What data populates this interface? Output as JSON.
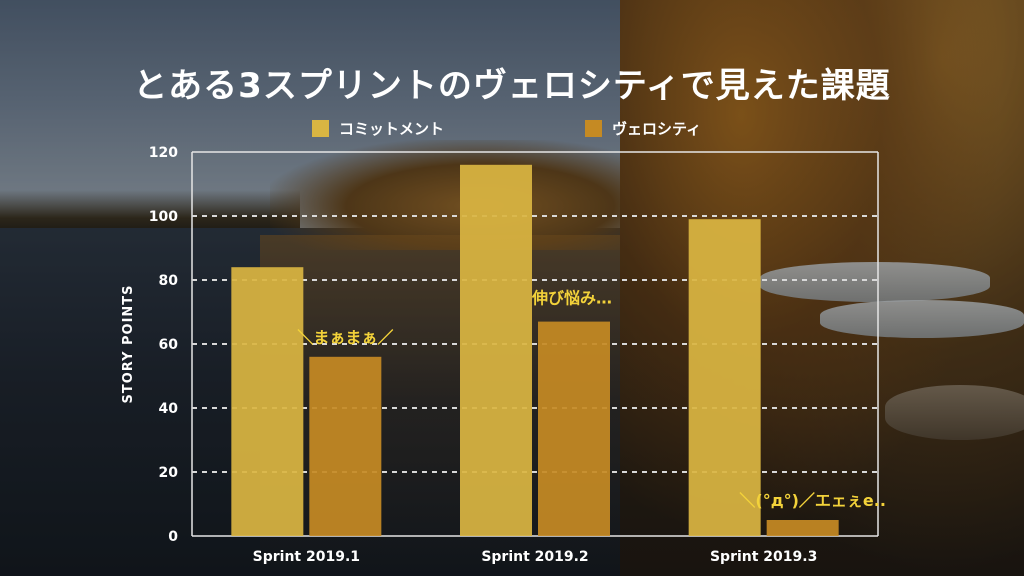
{
  "title": "とある3スプリントのヴェロシティで見えた課題",
  "colors": {
    "commitment": "#d9b542",
    "velocity": "#c58a23",
    "annotation": "#f3d23a",
    "grid": "#d8d8d8"
  },
  "chart_data": {
    "type": "bar",
    "categories": [
      "Sprint 2019.1",
      "Sprint 2019.2",
      "Sprint 2019.3"
    ],
    "series": [
      {
        "name": "コミットメント",
        "values": [
          84,
          116,
          99
        ]
      },
      {
        "name": "ヴェロシティ",
        "values": [
          56,
          67,
          5
        ]
      }
    ],
    "xlabel": "",
    "ylabel": "STORY POINTS",
    "ylim": [
      0,
      120
    ],
    "yticks": [
      0,
      20,
      40,
      60,
      80,
      100,
      120
    ],
    "grid": true,
    "legend_position": "top",
    "annotations": [
      {
        "text": "＼まぁまぁ／",
        "category": "Sprint 2019.1"
      },
      {
        "text": "伸び悩み…",
        "category": "Sprint 2019.2"
      },
      {
        "text": "＼(°д°)／エェぇe..",
        "category": "Sprint 2019.3"
      }
    ]
  }
}
